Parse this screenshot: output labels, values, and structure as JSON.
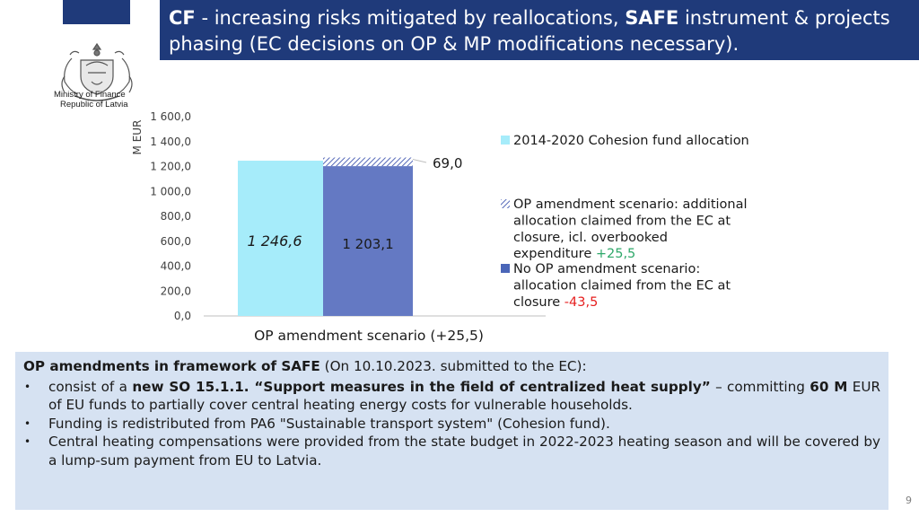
{
  "header": {
    "title_cf": "CF",
    "title_part1": " - increasing risks mitigated by reallocations, ",
    "title_safe": "SAFE",
    "title_part2": " instrument & projects phasing (EC decisions on OP & MP modifications necessary)."
  },
  "logo": {
    "line1": "Ministry of Finance",
    "line2": "Republic of Latvia"
  },
  "chart_data": {
    "type": "bar",
    "stacked": true,
    "ylabel": "M EUR",
    "ylim": [
      0,
      1600
    ],
    "yticks": [
      "0,0",
      "200,0",
      "400,0",
      "600,0",
      "800,0",
      "1 000,0",
      "1 200,0",
      "1 400,0",
      "1 600,0"
    ],
    "ytick_values": [
      0,
      200,
      400,
      600,
      800,
      1000,
      1200,
      1400,
      1600
    ],
    "xlabel": "OP amendment scenario (+25,5)",
    "bars": [
      {
        "name": "allocation",
        "segments": [
          {
            "value": 1246.6,
            "label": "1 246,6",
            "color": "#a6ecfa"
          }
        ]
      },
      {
        "name": "scenario",
        "segments": [
          {
            "value": 1203.1,
            "label": "1 203,1",
            "color": "#6479c3"
          },
          {
            "value": 69.0,
            "label": "69,0",
            "pattern": "hatch"
          }
        ]
      }
    ],
    "legend": [
      {
        "text": "2014-2020 Cohesion fund allocation",
        "color": "#a6ecfa"
      },
      {
        "text_lines": [
          "OP amendment scenario: additional",
          "allocation claimed from the EC at",
          "closure, icl. overbooked",
          "expenditure"
        ],
        "suffix": "+25,5",
        "suffix_color": "#2fa86a",
        "pattern": "hatch"
      },
      {
        "text_lines": [
          "No OP amendment scenario:",
          "allocation claimed from the EC at",
          "closure"
        ],
        "suffix": "-43,5",
        "suffix_color": "#e62020",
        "color": "#4a66b8"
      }
    ]
  },
  "box": {
    "heading": "OP amendments in framework of SAFE",
    "heading_rest": " (On 10.10.2023. submitted to the EC):",
    "b1_a": "consist of a ",
    "b1_bold": "new SO 15.1.1. “Support measures in the field of centralized heat supply”",
    "b1_b": " – committing ",
    "b1_bold2": "60 M",
    "b1_c": " EUR of EU funds to partially cover central heating energy costs for vulnerable households.",
    "b2": "Funding is redistributed from PA6 \"Sustainable transport system\" (Cohesion fund).",
    "b3": "Central heating compensations were provided from the state budget in 2022-2023 heating season and will be covered by a lump-sum payment from EU to Latvia."
  },
  "page_number": "9"
}
